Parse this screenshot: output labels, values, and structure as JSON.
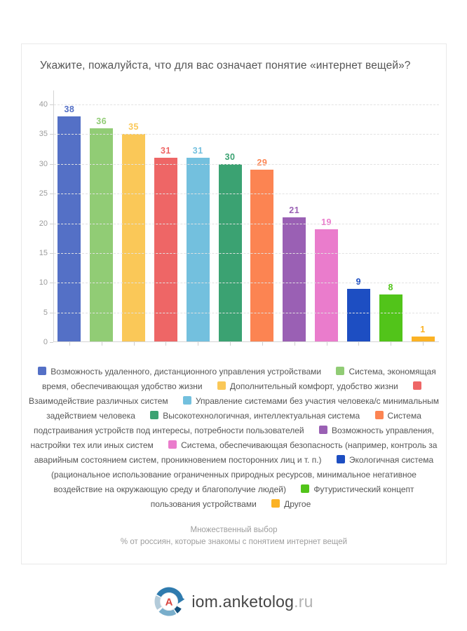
{
  "page": {
    "title": "Укажите, пожалуйста, что для вас означает понятие «интернет вещей»?",
    "footnote_line1": "Множественный выбор",
    "footnote_line2": "% от россиян, которые знакомы с понятием интернет вещей",
    "logo": {
      "letter": "A",
      "text_main": "iom.anketolog",
      "text_suffix": ".ru"
    }
  },
  "chart_data": {
    "type": "bar",
    "title": "Укажите, пожалуйста, что для вас означает понятие «интернет вещей»?",
    "xlabel": "",
    "ylabel": "",
    "ylim": [
      0,
      40
    ],
    "yticks": [
      0,
      5,
      10,
      15,
      20,
      25,
      30,
      35,
      40
    ],
    "grid": true,
    "gridline_style": "dashed",
    "legend_position": "bottom",
    "value_labels": "above bars, colored as bars",
    "categories": [
      "Возможность удаленного, дистанционного управления устройствами",
      "Система, экономящая время, обеспечивающая удобство жизни",
      "Дополнительный комфорт, удобство жизни",
      "Взаимодействие различных систем",
      "Управление системами без участия человека/с минимальным задействием человека",
      "Высокотехнологичная, интеллектуальная система",
      "Система подстраивания устройств под интересы, потребности пользователей",
      "Возможность управления, настройки тех или иных систем",
      "Система, обеспечивающая безопасность (например, контроль за аварийным состоянием систем, проникновением посторонних лиц и т. п.)",
      "Экологичная система (рациональное использование ограниченных природных ресурсов, минимальное негативное воздействие на окружающую среду и благополучие людей)",
      "Футуристический концепт пользования устройствами",
      "Другое"
    ],
    "values": [
      38,
      36,
      35,
      31,
      31,
      30,
      29,
      21,
      19,
      9,
      8,
      1
    ],
    "colors": [
      "#5470C6",
      "#91CC75",
      "#FAC858",
      "#EE6666",
      "#73C0DE",
      "#3BA272",
      "#FC8452",
      "#9A60B4",
      "#EA7CCC",
      "#1D4EC2",
      "#52C41A",
      "#FBB224"
    ]
  }
}
